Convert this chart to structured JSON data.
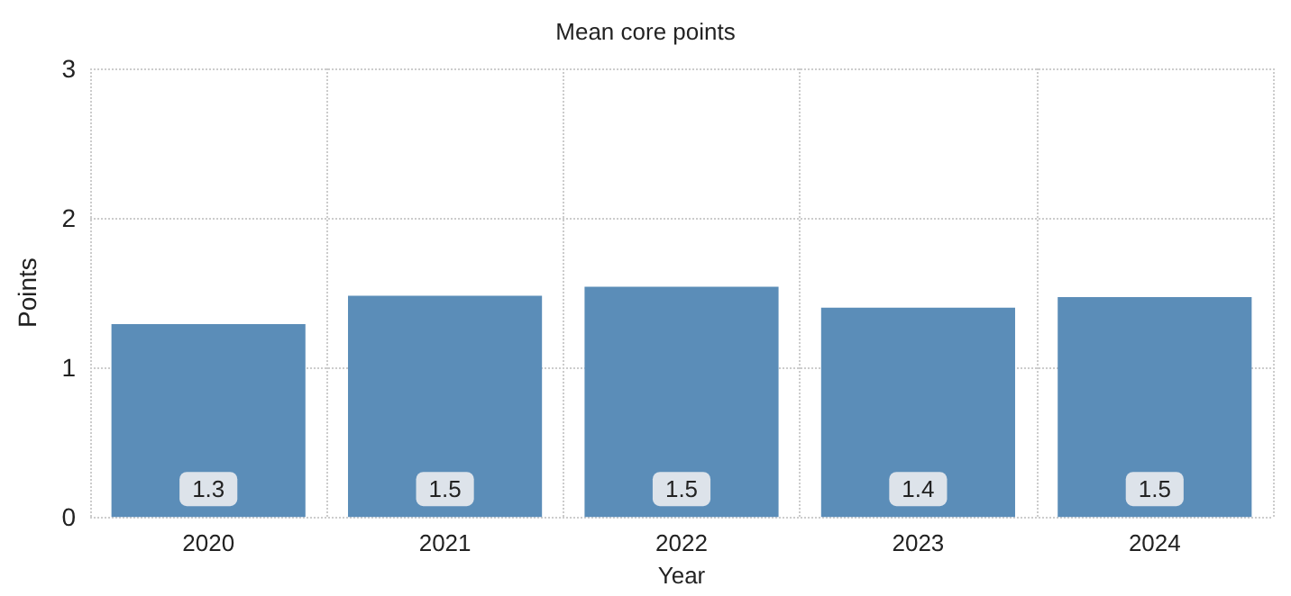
{
  "chart_data": {
    "type": "bar",
    "title": "Mean core points",
    "xlabel": "Year",
    "ylabel": "Points",
    "categories": [
      "2020",
      "2021",
      "2022",
      "2023",
      "2024"
    ],
    "values": [
      1.29,
      1.48,
      1.54,
      1.4,
      1.47
    ],
    "value_labels": [
      "1.3",
      "1.5",
      "1.5",
      "1.4",
      "1.5"
    ],
    "color": "#5b8db8",
    "ylim": [
      0,
      3
    ],
    "yticks": [
      0,
      1,
      2,
      3
    ],
    "grid": true
  }
}
